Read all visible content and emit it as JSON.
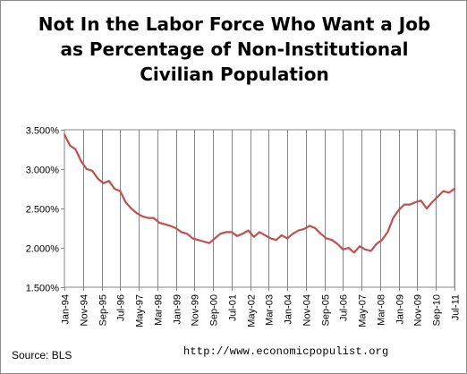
{
  "chart_data": {
    "type": "line",
    "title_lines": [
      "Not In the Labor Force Who Want a Job",
      "as Percentage of Non-Institutional",
      "Civilian Population"
    ],
    "ylim": [
      1.5,
      3.5
    ],
    "y_ticks": [
      "1.500%",
      "2.000%",
      "2.500%",
      "3.000%",
      "3.500%"
    ],
    "x_ticks": [
      "Jan-94",
      "Nov-94",
      "Sep-95",
      "Jul-96",
      "May-97",
      "Mar-98",
      "Jan-99",
      "Nov-99",
      "Sep-00",
      "Jul-01",
      "May-02",
      "Mar-03",
      "Jan-04",
      "Nov-04",
      "Sep-05",
      "Jul-06",
      "May-07",
      "Mar-08",
      "Jan-09",
      "Nov-09",
      "Sep-10",
      "Jul-11"
    ],
    "grid": "vertical",
    "series": [
      {
        "color": "#c0504d",
        "x": [
          "Jan-94",
          "Apr-94",
          "Jul-94",
          "Oct-94",
          "Jan-95",
          "Apr-95",
          "Jul-95",
          "Oct-95",
          "Jan-96",
          "Apr-96",
          "Jul-96",
          "Oct-96",
          "Jan-97",
          "Apr-97",
          "Jul-97",
          "Oct-97",
          "Jan-98",
          "Apr-98",
          "Jul-98",
          "Oct-98",
          "Jan-99",
          "Apr-99",
          "Jul-99",
          "Oct-99",
          "Jan-00",
          "Apr-00",
          "Jul-00",
          "Oct-00",
          "Jan-01",
          "Apr-01",
          "Jul-01",
          "Oct-01",
          "Jan-02",
          "Apr-02",
          "Jul-02",
          "Oct-02",
          "Jan-03",
          "Apr-03",
          "Jul-03",
          "Oct-03",
          "Jan-04",
          "Apr-04",
          "Jul-04",
          "Oct-04",
          "Jan-05",
          "Apr-05",
          "Jul-05",
          "Oct-05",
          "Jan-06",
          "Apr-06",
          "Jul-06",
          "Oct-06",
          "Jan-07",
          "Apr-07",
          "Jul-07",
          "Oct-07",
          "Jan-08",
          "Apr-08",
          "Jul-08",
          "Oct-08",
          "Jan-09",
          "Apr-09",
          "Jul-09",
          "Oct-09",
          "Jan-10",
          "Apr-10",
          "Jul-10",
          "Oct-10",
          "Jan-11",
          "Apr-11",
          "Jul-11"
        ],
        "values": [
          3.44,
          3.3,
          3.25,
          3.1,
          3.0,
          2.98,
          2.88,
          2.82,
          2.85,
          2.75,
          2.72,
          2.58,
          2.5,
          2.44,
          2.4,
          2.38,
          2.38,
          2.32,
          2.3,
          2.28,
          2.25,
          2.2,
          2.18,
          2.12,
          2.1,
          2.08,
          2.06,
          2.12,
          2.18,
          2.2,
          2.2,
          2.15,
          2.18,
          2.22,
          2.14,
          2.2,
          2.16,
          2.12,
          2.1,
          2.16,
          2.12,
          2.18,
          2.22,
          2.24,
          2.28,
          2.25,
          2.18,
          2.12,
          2.1,
          2.05,
          1.98,
          2.0,
          1.94,
          2.02,
          1.98,
          1.96,
          2.05,
          2.1,
          2.2,
          2.38,
          2.48,
          2.55,
          2.55,
          2.58,
          2.6,
          2.5,
          2.58,
          2.65,
          2.72,
          2.7,
          2.75
        ]
      }
    ]
  },
  "footer": {
    "source": "Source:  BLS",
    "url": "http://www.economicpopulist.org"
  }
}
